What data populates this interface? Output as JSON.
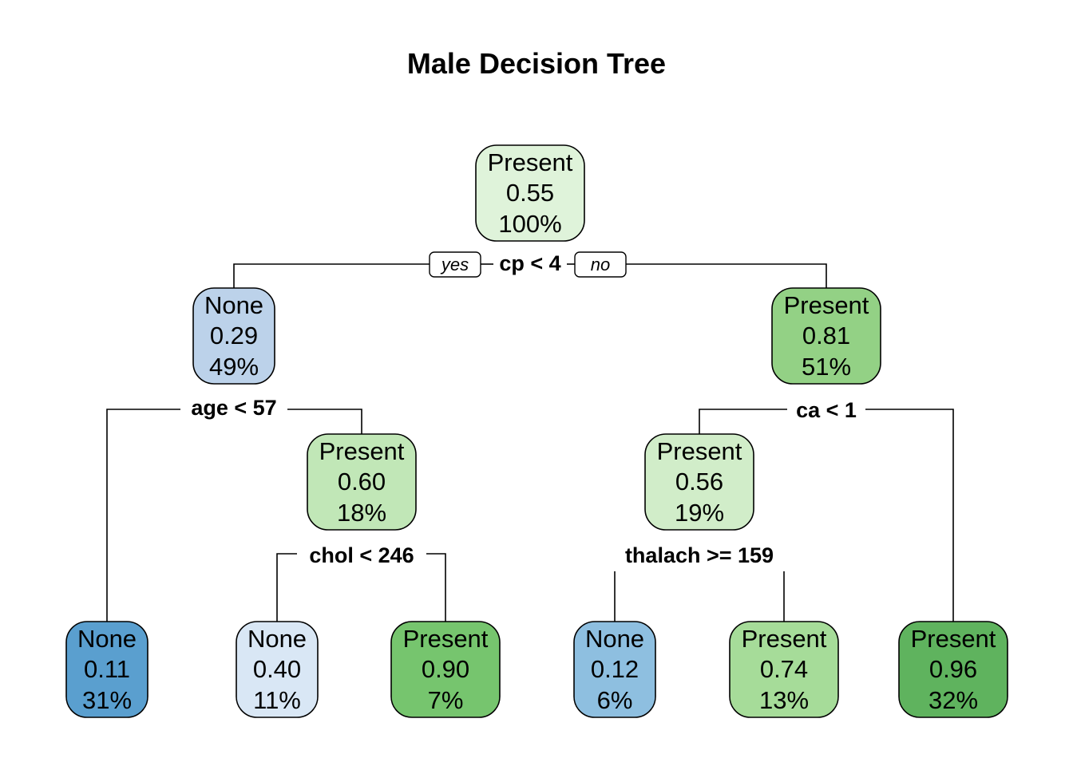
{
  "title": "Male Decision Tree",
  "branch_labels": {
    "yes": "yes",
    "no": "no"
  },
  "nodes": [
    {
      "id": "root",
      "class": "Present",
      "prob": "0.55",
      "pct": "100%",
      "color": "#dff3da"
    },
    {
      "id": "n2",
      "class": "None",
      "prob": "0.29",
      "pct": "49%",
      "color": "#bcd2ea"
    },
    {
      "id": "n3",
      "class": "Present",
      "prob": "0.81",
      "pct": "51%",
      "color": "#93d185"
    },
    {
      "id": "n5",
      "class": "Present",
      "prob": "0.60",
      "pct": "18%",
      "color": "#c1e7b7"
    },
    {
      "id": "n6",
      "class": "Present",
      "prob": "0.56",
      "pct": "19%",
      "color": "#d1edc9"
    },
    {
      "id": "leaf1",
      "class": "None",
      "prob": "0.11",
      "pct": "31%",
      "color": "#5a9fcf"
    },
    {
      "id": "leaf2",
      "class": "None",
      "prob": "0.40",
      "pct": "11%",
      "color": "#d9e7f5"
    },
    {
      "id": "leaf3",
      "class": "Present",
      "prob": "0.90",
      "pct": "7%",
      "color": "#76c56e"
    },
    {
      "id": "leaf4",
      "class": "None",
      "prob": "0.12",
      "pct": "6%",
      "color": "#8ebfe0"
    },
    {
      "id": "leaf5",
      "class": "Present",
      "prob": "0.74",
      "pct": "13%",
      "color": "#a6dc99"
    },
    {
      "id": "leaf6",
      "class": "Present",
      "prob": "0.96",
      "pct": "32%",
      "color": "#5fb35e"
    }
  ],
  "splits": [
    {
      "id": "s-root",
      "label": "cp < 4"
    },
    {
      "id": "s-n2",
      "label": "age < 57"
    },
    {
      "id": "s-n3",
      "label": "ca < 1"
    },
    {
      "id": "s-n5",
      "label": "chol < 246"
    },
    {
      "id": "s-n6",
      "label": "thalach >= 159"
    }
  ]
}
